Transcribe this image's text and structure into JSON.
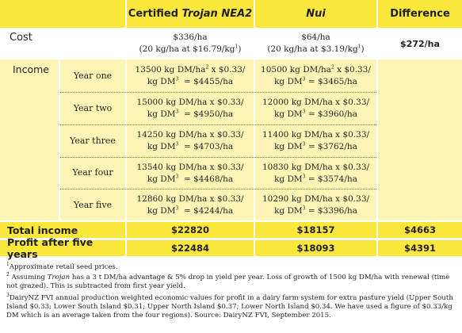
{
  "header": {
    "col1_prefix": "Certified ",
    "col1_cultivar": "Trojan NEA2",
    "col2": "Nui",
    "col3": "Difference"
  },
  "cost": {
    "label": "Cost",
    "col1_line1": "$336/ha",
    "col1_line2": "(20 kg/ha at $16.79/kg",
    "col1_sup": "1",
    "col2_line1": "$64/ha",
    "col2_line2": "(20 kg/ha at $3.19/kg",
    "col2_sup": "1",
    "diff": "$272/ha"
  },
  "income": {
    "label": "Income",
    "years": [
      {
        "label": "Year one",
        "c1_a": "13500 kg DM/ha",
        "c1_a_sup": "2",
        "c1_b": " x $0.33/",
        "c1_c": "kg DM",
        "c1_c_sup": "3",
        "c1_d": "  = $4455/ha",
        "c2_a": "10500 kg DM/ha",
        "c2_a_sup": "2",
        "c2_b": " x $0.33/",
        "c2_c": "kg DM",
        "c2_c_sup": "3",
        "c2_d": " = $3465/ha"
      },
      {
        "label": "Year two",
        "c1_a": "15000 kg DM/ha x $0.33/",
        "c1_c": "kg DM",
        "c1_c_sup": "3",
        "c1_d": "  = $4950/ha",
        "c2_a": "12000 kg DM/ha x $0.33/",
        "c2_c": "kg DM",
        "c2_c_sup": "3",
        "c2_d": " = $3960/ha"
      },
      {
        "label": "Year three",
        "c1_a": "14250 kg DM/ha x $0.33/",
        "c1_c": "kg DM",
        "c1_c_sup": "3",
        "c1_d": "  = $4703/ha",
        "c2_a": "11400 kg DM/ha x $0.33/",
        "c2_c": "kg DM",
        "c2_c_sup": "3",
        "c2_d": " = $3762/ha"
      },
      {
        "label": "Year four",
        "c1_a": "13540 kg DM/ha x $0.33/",
        "c1_c": "kg DM",
        "c1_c_sup": "3",
        "c1_d": "  = $4468/ha",
        "c2_a": "10830 kg DM/ha x $0.33/",
        "c2_c": "kg DM",
        "c2_c_sup": "3",
        "c2_d": " = $3574/ha"
      },
      {
        "label": "Year five",
        "c1_a": "12860 kg DM/ha x $0.33/",
        "c1_c": "kg DM",
        "c1_c_sup": "3",
        "c1_d": "  = $4244/ha",
        "c2_a": "10290 kg DM/ha x $0.33/",
        "c2_c": "kg DM",
        "c2_c_sup": "3",
        "c2_d": " = $3396/ha"
      }
    ]
  },
  "total_income": {
    "label": "Total income",
    "col1": "$22820",
    "col2": "$18157",
    "diff": "$4663"
  },
  "profit": {
    "label": "Profit after five years",
    "col1": "$22484",
    "col2": "$18093",
    "diff": "$4391"
  },
  "footnotes": {
    "f1_num": "1",
    "f1": "Approximate retail seed prices.",
    "f2_num": "2",
    "f2_a": " Assuming ",
    "f2_b": "Trojan",
    "f2_c": " has a 3 t DM/ha advantage & 5% drop in yield per year. Loss of growth of 1500 kg DM/ha with renewal (time not grazed). This is subtracted from first year yield.",
    "f3_num": "3",
    "f3": "DairyNZ FVI annual production weighted economic values for profit in a dairy farm system for extra pasture yield (Upper South Island $0.33; Lower South Island $0.31; Upper North Island $0.37; Lower North Island $0.34. We have used a figure of $0.33/kg DM which is an average taken from the four regions).  Source: DairyNZ FVI, September 2015."
  },
  "colors": {
    "header": "#fce83a",
    "income_fill": "#fdf5b5"
  }
}
